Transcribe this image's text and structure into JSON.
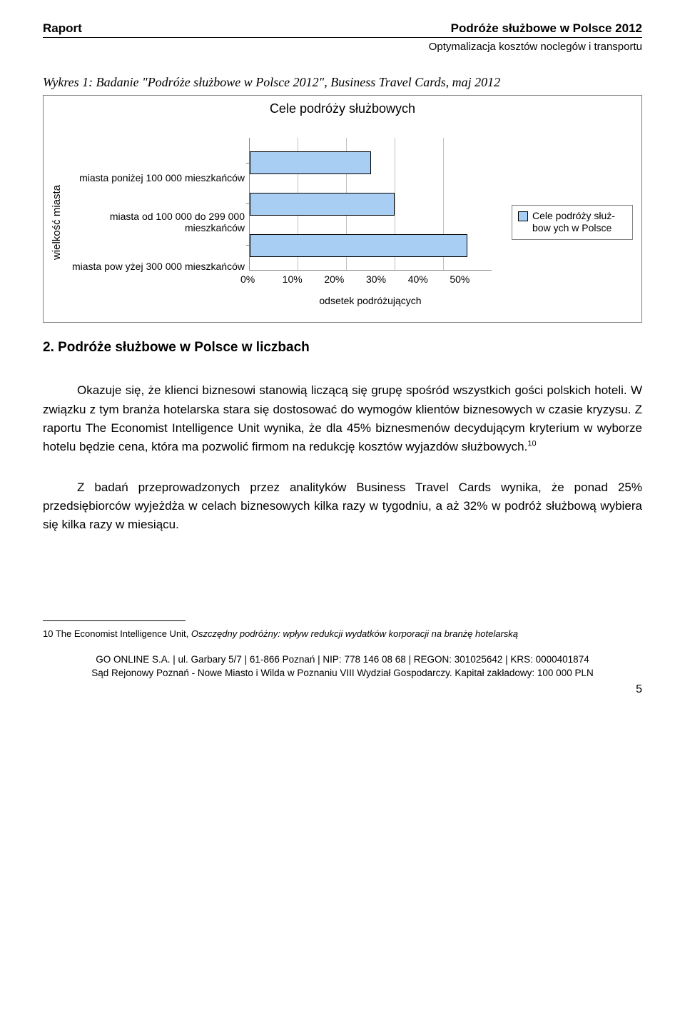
{
  "header": {
    "left": "Raport",
    "right": "Podróże służbowe w Polsce 2012",
    "sub": "Optymalizacja kosztów noclegów i transportu"
  },
  "caption": "Wykres 1: Badanie \"Podróże służbowe w Polsce 2012\", Business Travel Cards, maj 2012",
  "chart": {
    "type": "bar-horizontal",
    "title": "Cele podróży służbowych",
    "ylabel": "wielkość miasta",
    "xlabel": "odsetek podróżujących",
    "categories": [
      "miasta poniżej 100 000 mieszkańców",
      "miasta od 100 000 do 299 000 mieszkańców",
      "miasta pow yżej 300 000 mieszkańców"
    ],
    "values": [
      25,
      30,
      45
    ],
    "xlim": [
      0,
      50
    ],
    "xticks": [
      "0%",
      "10%",
      "20%",
      "30%",
      "40%",
      "50%"
    ],
    "bar_color": "#a9cef4",
    "bar_border": "#000000",
    "grid_color": "#c0c0c0",
    "background_color": "#ffffff",
    "legend_label": "Cele podróży służ-bow ych w Polsce",
    "title_fontsize": 18,
    "label_fontsize": 14
  },
  "section_heading": "2.  Podróże służbowe w Polsce w liczbach",
  "paragraphs": {
    "p1_a": "Okazuje się, że klienci biznesowi stanowią liczącą się grupę spośród wszystkich gości polskich hoteli. W związku z tym branża hotelarska stara się dostosować do wymogów klientów biznesowych w czasie kryzysu. Z raportu The Economist Intelligence Unit wynika, że dla 45% biznesmenów decydującym kryterium w wyborze hotelu będzie cena, która ma pozwolić firmom na redukcję kosztów wyjazdów służbowych.",
    "p1_sup": "10",
    "p2": "Z badań przeprowadzonych przez analityków Business Travel Cards wynika, że ponad 25% przedsiębiorców wyjeżdża w celach biznesowych kilka razy w tygodniu, a aż 32% w podróż służbową wybiera się kilka razy w miesiącu."
  },
  "footnote": {
    "num": "10",
    "source": "The Economist Intelligence Unit, ",
    "title": "Oszczędny podróżny: wpływ redukcji wydatków korporacji na branżę hotelarską"
  },
  "footer": {
    "line1": "GO ONLINE S.A. | ul. Garbary 5/7 | 61-866 Poznań | NIP: 778 146 08 68 | REGON: 301025642 | KRS: 0000401874",
    "line2": "Sąd Rejonowy Poznań - Nowe Miasto i Wilda w Poznaniu VIII Wydział Gospodarczy. Kapitał zakładowy: 100 000 PLN"
  },
  "page_number": "5"
}
